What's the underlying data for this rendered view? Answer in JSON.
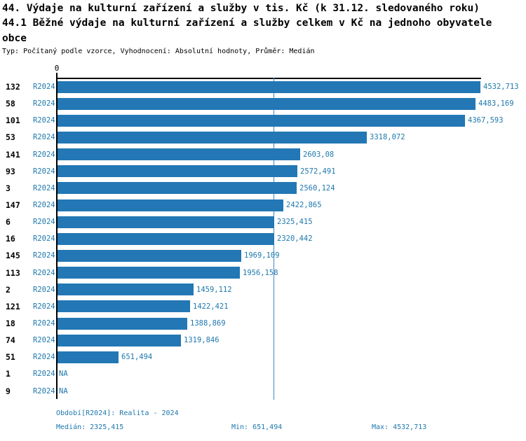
{
  "header": {
    "title_line1": "44. Výdaje na kulturní zařízení a služby v tis. Kč (k 31.12. sledovaného roku)",
    "title_line2": "44.1 Běžné výdaje na kulturní zařízení a služby celkem v Kč na jednoho obyvatele obce",
    "subtitle": "Typ: Počítaný podle vzorce, Vyhodnocení: Absolutní hodnoty, Průměr: Medián"
  },
  "colors": {
    "bar": "#2277b4",
    "text_blue": "#1e78ad",
    "median_line": "#4288bd",
    "axis": "#000000"
  },
  "chart_data": {
    "type": "bar",
    "orientation": "horizontal",
    "series_label": "R2024",
    "x_axis": {
      "origin_label": "0",
      "min": 0,
      "max": 4532.713
    },
    "grid": false,
    "legend_position": "none",
    "categories": [
      "132",
      "58",
      "101",
      "53",
      "141",
      "93",
      "3",
      "147",
      "6",
      "16",
      "145",
      "113",
      "2",
      "121",
      "18",
      "74",
      "51",
      "1",
      "9"
    ],
    "values": [
      4532.713,
      4483.169,
      4367.593,
      3318.072,
      2603.08,
      2572.491,
      2560.124,
      2422.865,
      2325.415,
      2320.442,
      1969.109,
      1956.158,
      1459.112,
      1422.421,
      1388.869,
      1319.846,
      651.494,
      null,
      null
    ],
    "value_labels": [
      "4532,713",
      "4483,169",
      "4367,593",
      "3318,072",
      "2603,08",
      "2572,491",
      "2560,124",
      "2422,865",
      "2325,415",
      "2320,442",
      "1969,109",
      "1956,158",
      "1459,112",
      "1422,421",
      "1388,869",
      "1319,846",
      "651,494",
      "NA",
      "NA"
    ],
    "median": 2325.415,
    "min": 651.494,
    "max": 4532.713
  },
  "footer": {
    "period": "Období[R2024]: Realita - 2024",
    "median": "Medián: 2325,415",
    "min": "Min: 651,494",
    "max": "Max: 4532,713"
  }
}
